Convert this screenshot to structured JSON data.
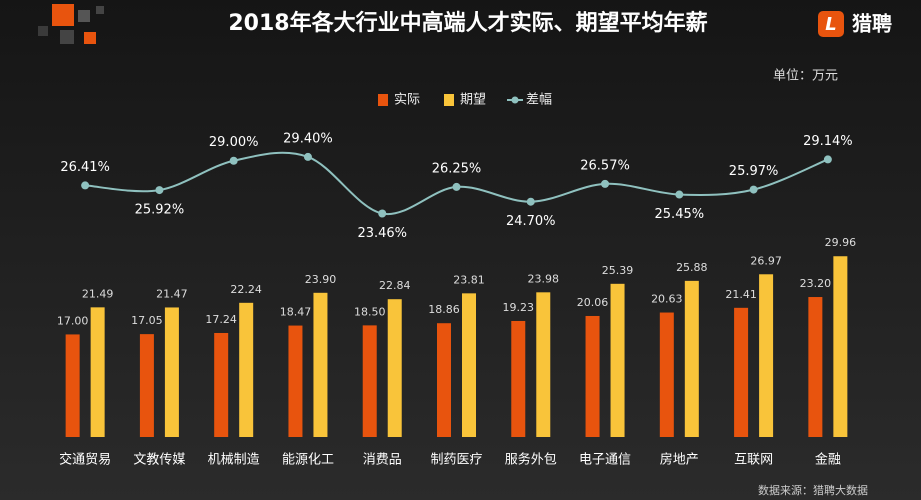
{
  "chart_data": {
    "type": "bar-line",
    "title": "2018年各大行业中高端人才实际、期望平均年薪",
    "unit": "单位：万元",
    "source": "数据来源：猎聘大数据",
    "brand": "猎聘",
    "brand_icon": "L",
    "categories": [
      "交通贸易",
      "文教传媒",
      "机械制造",
      "能源化工",
      "消费品",
      "制药医疗",
      "服务外包",
      "电子通信",
      "房地产",
      "互联网",
      "金融"
    ],
    "series": [
      {
        "name": "实际",
        "type": "bar",
        "color": "#e8540e",
        "values": [
          17.0,
          17.05,
          17.24,
          18.47,
          18.5,
          18.86,
          19.23,
          20.06,
          20.63,
          21.41,
          23.2
        ],
        "value_labels": [
          "17.00",
          "17.05",
          "17.24",
          "18.47",
          "18.50",
          "18.86",
          "19.23",
          "20.06",
          "20.63",
          "21.41",
          "23.20"
        ]
      },
      {
        "name": "期望",
        "type": "bar",
        "color": "#f9c43a",
        "values": [
          21.49,
          21.47,
          22.24,
          23.9,
          22.84,
          23.81,
          23.98,
          25.39,
          25.88,
          26.97,
          29.96
        ],
        "value_labels": [
          "21.49",
          "21.47",
          "22.24",
          "23.90",
          "22.84",
          "23.81",
          "23.98",
          "25.39",
          "25.88",
          "26.97",
          "29.96"
        ]
      },
      {
        "name": "差幅",
        "type": "line",
        "axis": "y2",
        "color": "#8fc1bf",
        "values": [
          26.41,
          25.92,
          29.0,
          29.4,
          23.46,
          26.25,
          24.7,
          26.57,
          25.45,
          25.97,
          29.14
        ],
        "value_labels": [
          "26.41%",
          "25.92%",
          "29.00%",
          "29.40%",
          "23.46%",
          "26.25%",
          "24.70%",
          "26.57%",
          "25.45%",
          "25.97%",
          "29.14%"
        ]
      }
    ],
    "ylim": [
      0,
      60
    ],
    "y2lim": [
      0,
      38
    ],
    "grid": false
  }
}
